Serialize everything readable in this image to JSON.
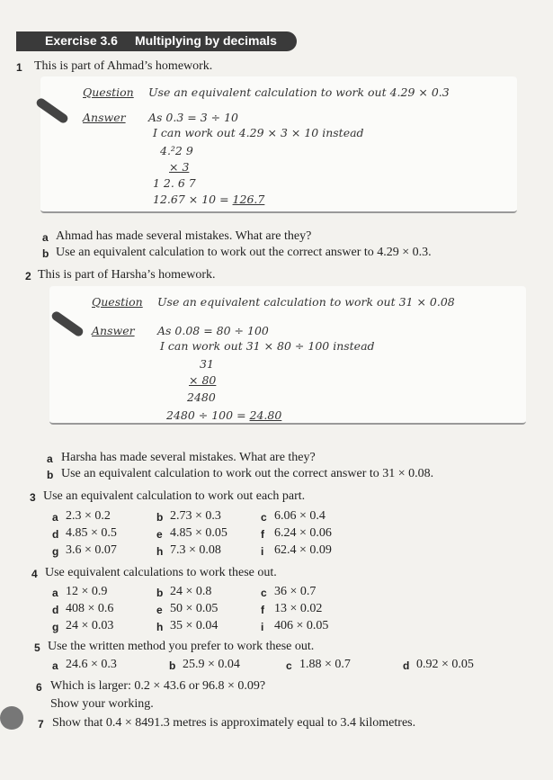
{
  "header": {
    "label": "Exercise 3.6",
    "title": "Multiplying by decimals"
  },
  "q1": {
    "number": "1",
    "text": "This is part of Ahmad’s homework.",
    "homework": {
      "question_label": "Question",
      "question": "Use an equivalent calculation to work out 4.29 × 0.3",
      "answer_label": "Answer",
      "lines": [
        "As 0.3 = 3 ÷ 10",
        "I can work out 4.29 × 3 × 10 instead",
        "4.²2 9",
        "× 3",
        "1 2. 6 7",
        "12.67 × 10 = "
      ],
      "result": "126.7"
    },
    "parts": [
      {
        "label": "a",
        "text": "Ahmad has made several mistakes. What are they?"
      },
      {
        "label": "b",
        "text": "Use an equivalent calculation to work out the correct answer to 4.29 × 0.3."
      }
    ]
  },
  "q2": {
    "number": "2",
    "text": "This is part of Harsha’s homework.",
    "homework": {
      "question_label": "Question",
      "question": "Use an equivalent calculation to work out 31 × 0.08",
      "answer_label": "Answer",
      "lines": [
        "As 0.08 = 80 ÷ 100",
        "I can work out 31 × 80 ÷ 100 instead",
        "31",
        "× 80",
        "2480",
        "2480 ÷ 100 = "
      ],
      "result": "24.80"
    },
    "parts": [
      {
        "label": "a",
        "text": "Harsha has made several mistakes. What are they?"
      },
      {
        "label": "b",
        "text": "Use an equivalent calculation to work out the correct answer to 31 × 0.08."
      }
    ]
  },
  "q3": {
    "number": "3",
    "text": "Use an equivalent calculation to work out each part.",
    "items": [
      [
        "a",
        "2.3 × 0.2"
      ],
      [
        "b",
        "2.73 × 0.3"
      ],
      [
        "c",
        "6.06 × 0.4"
      ],
      [
        "d",
        "4.85 × 0.5"
      ],
      [
        "e",
        "4.85 × 0.05"
      ],
      [
        "f",
        "6.24 × 0.06"
      ],
      [
        "g",
        "3.6 × 0.07"
      ],
      [
        "h",
        "7.3 × 0.08"
      ],
      [
        "i",
        "62.4 × 0.09"
      ]
    ]
  },
  "q4": {
    "number": "4",
    "text": "Use equivalent calculations to work these out.",
    "items": [
      [
        "a",
        "12 × 0.9"
      ],
      [
        "b",
        "24 × 0.8"
      ],
      [
        "c",
        "36 × 0.7"
      ],
      [
        "d",
        "408 × 0.6"
      ],
      [
        "e",
        "50 × 0.05"
      ],
      [
        "f",
        "13 × 0.02"
      ],
      [
        "g",
        "24 × 0.03"
      ],
      [
        "h",
        "35 × 0.04"
      ],
      [
        "i",
        "406 × 0.05"
      ]
    ]
  },
  "q5": {
    "number": "5",
    "text": "Use the written method you prefer to work these out.",
    "items": [
      [
        "a",
        "24.6 × 0.3"
      ],
      [
        "b",
        "25.9 × 0.04"
      ],
      [
        "c",
        "1.88 × 0.7"
      ],
      [
        "d",
        "0.92 × 0.05"
      ]
    ]
  },
  "q6": {
    "number": "6",
    "text": "Which is larger: 0.2 × 43.6 or 96.8 × 0.09?",
    "text2": "Show your working."
  },
  "q7": {
    "number": "7",
    "text": "Show that 0.4 × 8491.3 metres is approximately equal to 3.4 kilometres."
  }
}
